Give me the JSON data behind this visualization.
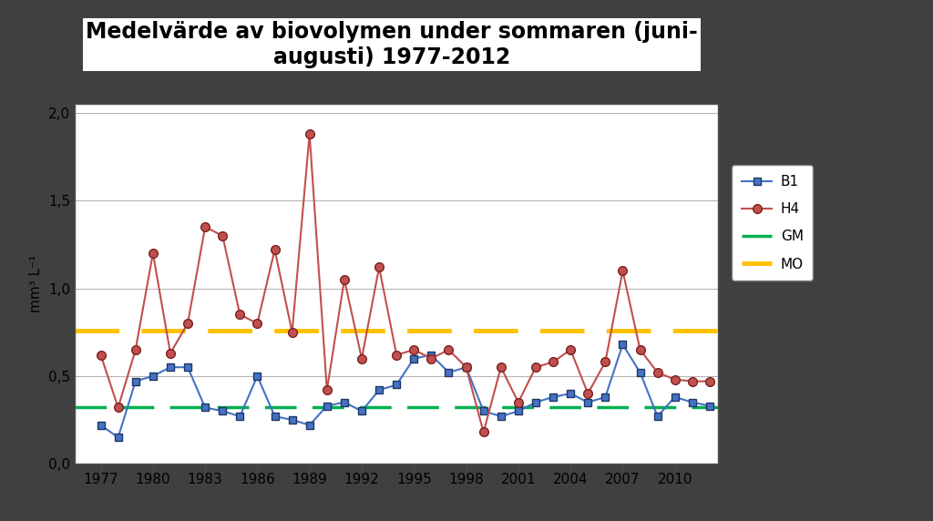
{
  "title": "Medelvärde av biovolymen under sommaren (juni-\naugusti) 1977-2012",
  "ylabel": "mm³ L⁻¹",
  "ylim": [
    0.0,
    2.05
  ],
  "yticks": [
    0.0,
    0.5,
    1.0,
    1.5,
    2.0
  ],
  "ytick_labels": [
    "0,0",
    "0,5",
    "1,0",
    "1,5",
    "2,0"
  ],
  "xticks": [
    1977,
    1980,
    1983,
    1986,
    1989,
    1992,
    1995,
    1998,
    2001,
    2004,
    2007,
    2010
  ],
  "B1_years": [
    1977,
    1978,
    1979,
    1980,
    1981,
    1982,
    1983,
    1984,
    1985,
    1986,
    1987,
    1988,
    1989,
    1990,
    1991,
    1992,
    1993,
    1994,
    1995,
    1996,
    1997,
    1998,
    1999,
    2000,
    2001,
    2002,
    2003,
    2004,
    2005,
    2006,
    2007,
    2008,
    2009,
    2010,
    2011,
    2012
  ],
  "B1_values": [
    0.22,
    0.15,
    0.47,
    0.5,
    0.55,
    0.55,
    0.32,
    0.3,
    0.27,
    0.5,
    0.27,
    0.25,
    0.22,
    0.33,
    0.35,
    0.3,
    0.42,
    0.45,
    0.6,
    0.62,
    0.52,
    0.55,
    0.3,
    0.27,
    0.3,
    0.35,
    0.38,
    0.4,
    0.35,
    0.38,
    0.68,
    0.52,
    0.27,
    0.38,
    0.35,
    0.33
  ],
  "H4_years": [
    1977,
    1978,
    1979,
    1980,
    1981,
    1982,
    1983,
    1984,
    1985,
    1986,
    1987,
    1988,
    1989,
    1990,
    1991,
    1992,
    1993,
    1994,
    1995,
    1996,
    1997,
    1998,
    1999,
    2000,
    2001,
    2002,
    2003,
    2004,
    2005,
    2006,
    2007,
    2008,
    2009,
    2010,
    2011,
    2012
  ],
  "H4_values": [
    0.62,
    0.32,
    0.65,
    1.2,
    0.63,
    0.8,
    1.35,
    1.3,
    0.85,
    0.8,
    1.22,
    0.75,
    1.88,
    0.42,
    1.05,
    0.6,
    1.12,
    0.62,
    0.65,
    0.6,
    0.65,
    0.55,
    0.18,
    0.55,
    0.35,
    0.55,
    0.58,
    0.65,
    0.4,
    0.58,
    1.1,
    0.65,
    0.52,
    0.48,
    0.47,
    0.47
  ],
  "GM_value": 0.32,
  "MO_value": 0.76,
  "B1_color": "#4472C4",
  "H4_color": "#C0504D",
  "GM_color": "#00B050",
  "MO_color": "#FFC000",
  "outer_bg": "#404040",
  "plot_bg_color": "#FFFFFF",
  "title_fontsize": 17,
  "axis_fontsize": 11,
  "tick_fontsize": 11
}
